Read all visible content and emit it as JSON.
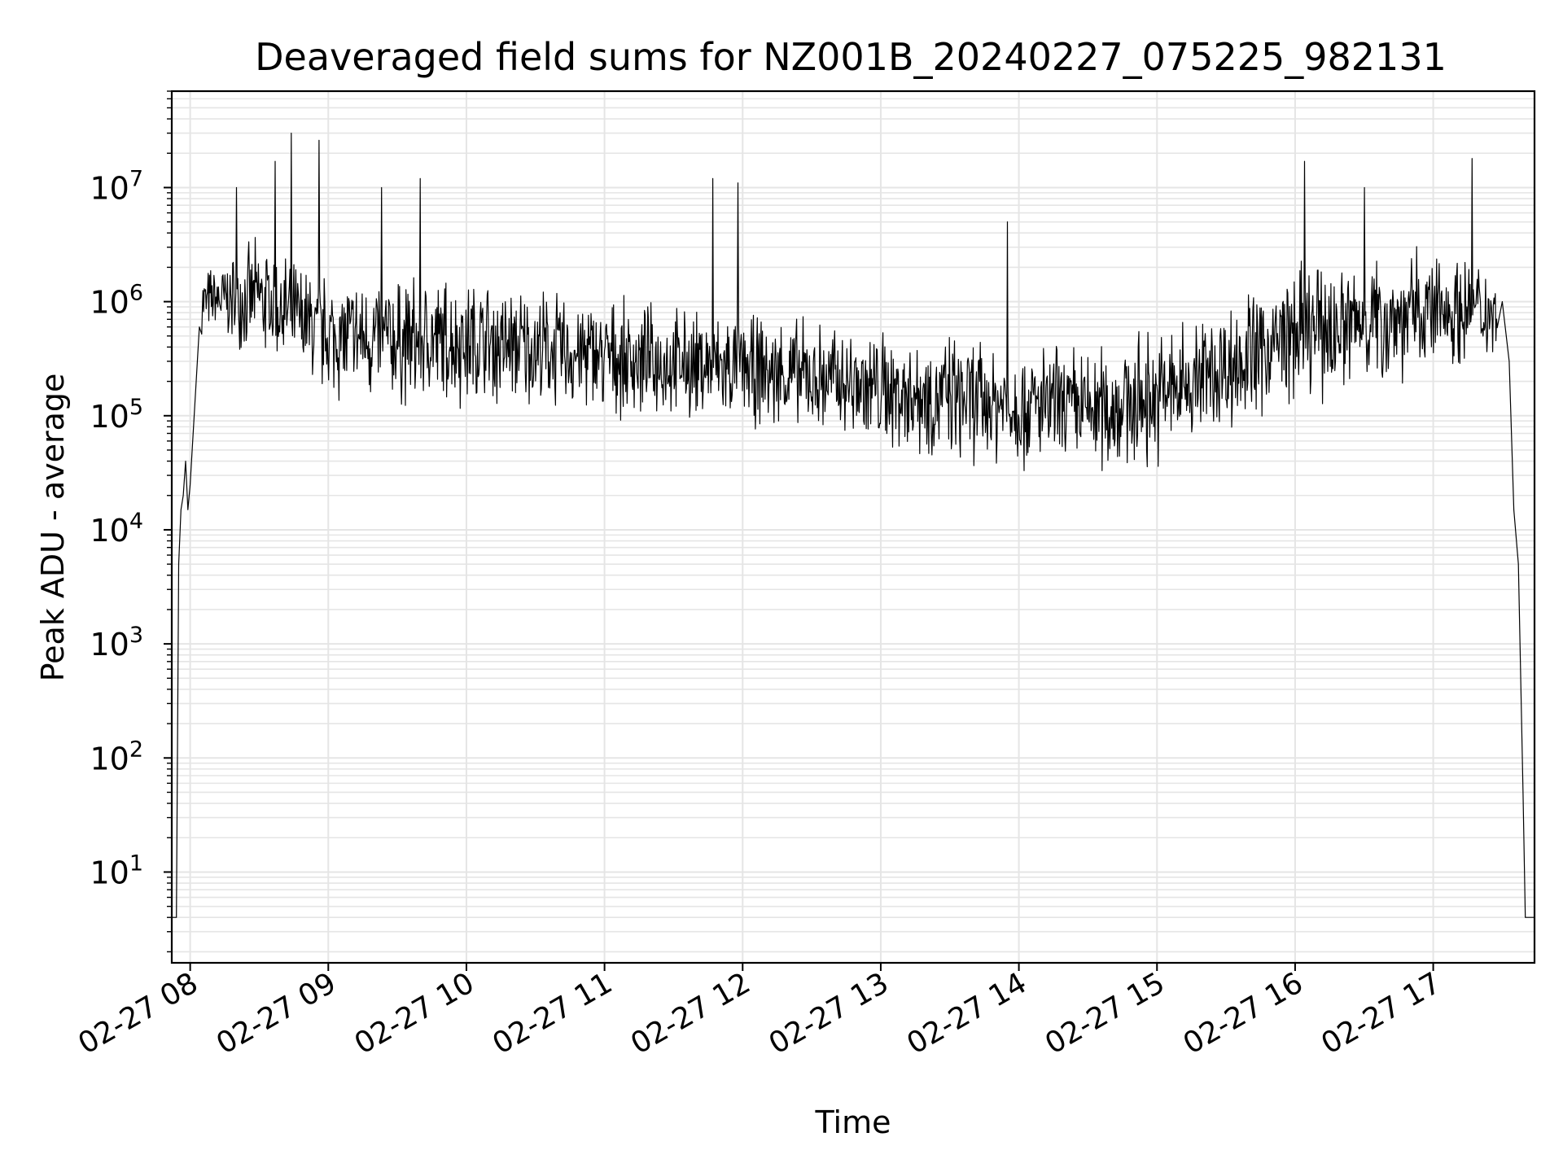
{
  "chart_data": {
    "type": "line",
    "title": "Deaveraged field sums for NZ001B_20240227_075225_982131",
    "xlabel": "Time",
    "ylabel": "Peak ADU - average",
    "yscale": "log",
    "ylim": [
      1.6,
      70000000
    ],
    "xlim": [
      "2024-02-27 07:52",
      "2024-02-27 17:44"
    ],
    "grid": true,
    "series_color": "#000000",
    "grid_color": "#e5e5e5",
    "x_ticks": [
      {
        "value": "2024-02-27 08:00",
        "label": "02-27 08"
      },
      {
        "value": "2024-02-27 09:00",
        "label": "02-27 09"
      },
      {
        "value": "2024-02-27 10:00",
        "label": "02-27 10"
      },
      {
        "value": "2024-02-27 11:00",
        "label": "02-27 11"
      },
      {
        "value": "2024-02-27 12:00",
        "label": "02-27 12"
      },
      {
        "value": "2024-02-27 13:00",
        "label": "02-27 13"
      },
      {
        "value": "2024-02-27 14:00",
        "label": "02-27 14"
      },
      {
        "value": "2024-02-27 15:00",
        "label": "02-27 15"
      },
      {
        "value": "2024-02-27 16:00",
        "label": "02-27 16"
      },
      {
        "value": "2024-02-27 17:00",
        "label": "02-27 17"
      }
    ],
    "y_ticks": [
      {
        "exponent": 1,
        "base": "10",
        "sup": "1"
      },
      {
        "exponent": 2,
        "base": "10",
        "sup": "2"
      },
      {
        "exponent": 3,
        "base": "10",
        "sup": "3"
      },
      {
        "exponent": 4,
        "base": "10",
        "sup": "4"
      },
      {
        "exponent": 5,
        "base": "10",
        "sup": "5"
      },
      {
        "exponent": 6,
        "base": "10",
        "sup": "6"
      },
      {
        "exponent": 7,
        "base": "10",
        "sup": "7"
      }
    ],
    "series": [
      {
        "points": [
          [
            "2024-02-27 07:52",
            4
          ],
          [
            "2024-02-27 07:53",
            4
          ],
          [
            "2024-02-27 07:54",
            4
          ],
          [
            "2024-02-27 07:55",
            5000
          ],
          [
            "2024-02-27 07:56",
            15000
          ],
          [
            "2024-02-27 07:57",
            20000
          ],
          [
            "2024-02-27 07:58",
            40000
          ],
          [
            "2024-02-27 07:59",
            15000
          ],
          [
            "2024-02-27 08:00",
            25000
          ],
          [
            "2024-02-27 08:04",
            600000
          ],
          [
            "2024-02-27 08:08",
            1200000
          ],
          [
            "2024-02-27 08:15",
            1800000
          ],
          [
            "2024-02-27 08:22",
            2500000
          ],
          [
            "2024-02-27 08:30",
            1800000
          ],
          [
            "2024-02-27 08:40",
            2500000
          ],
          [
            "2024-02-27 08:50",
            800000
          ],
          [
            "2024-02-27 09:00",
            1000000
          ],
          [
            "2024-02-27 09:20",
            900000
          ],
          [
            "2024-02-27 09:40",
            800000
          ],
          [
            "2024-02-27 10:00",
            900000
          ],
          [
            "2024-02-27 10:30",
            800000
          ],
          [
            "2024-02-27 11:00",
            700000
          ],
          [
            "2024-02-27 11:30",
            650000
          ],
          [
            "2024-02-27 12:00",
            500000
          ],
          [
            "2024-02-27 12:30",
            400000
          ],
          [
            "2024-02-27 13:00",
            300000
          ],
          [
            "2024-02-27 13:30",
            200000
          ],
          [
            "2024-02-27 14:00",
            150000
          ],
          [
            "2024-02-27 14:30",
            130000
          ],
          [
            "2024-02-27 15:00",
            180000
          ],
          [
            "2024-02-27 15:30",
            300000
          ],
          [
            "2024-02-27 16:00",
            450000
          ],
          [
            "2024-02-27 16:30",
            900000
          ],
          [
            "2024-02-27 17:00",
            1400000
          ],
          [
            "2024-02-27 17:20",
            1500000
          ],
          [
            "2024-02-27 17:30",
            1000000
          ],
          [
            "2024-02-27 17:33",
            300000
          ],
          [
            "2024-02-27 17:35",
            15000
          ],
          [
            "2024-02-27 17:37",
            5000
          ],
          [
            "2024-02-27 17:39",
            50
          ],
          [
            "2024-02-27 17:40",
            4
          ],
          [
            "2024-02-27 17:44",
            4
          ]
        ]
      }
    ],
    "spikes": [
      {
        "x": "2024-02-27 08:20",
        "y": 10000000
      },
      {
        "x": "2024-02-27 08:37",
        "y": 17000000
      },
      {
        "x": "2024-02-27 08:44",
        "y": 30000000
      },
      {
        "x": "2024-02-27 08:56",
        "y": 26000000
      },
      {
        "x": "2024-02-27 09:23",
        "y": 10000000
      },
      {
        "x": "2024-02-27 09:40",
        "y": 12000000
      },
      {
        "x": "2024-02-27 11:47",
        "y": 12000000
      },
      {
        "x": "2024-02-27 11:58",
        "y": 11000000
      },
      {
        "x": "2024-02-27 13:55",
        "y": 5000000
      },
      {
        "x": "2024-02-27 16:04",
        "y": 17000000
      },
      {
        "x": "2024-02-27 16:30",
        "y": 10000000
      },
      {
        "x": "2024-02-27 17:17",
        "y": 18000000
      }
    ],
    "envelope": [
      {
        "x": "2024-02-27 08:05",
        "lo": 500000,
        "hi": 2000000
      },
      {
        "x": "2024-02-27 08:30",
        "lo": 300000,
        "hi": 4000000
      },
      {
        "x": "2024-02-27 09:00",
        "lo": 120000,
        "hi": 2000000
      },
      {
        "x": "2024-02-27 09:30",
        "lo": 100000,
        "hi": 2000000
      },
      {
        "x": "2024-02-27 10:00",
        "lo": 100000,
        "hi": 2000000
      },
      {
        "x": "2024-02-27 10:30",
        "lo": 100000,
        "hi": 1500000
      },
      {
        "x": "2024-02-27 11:00",
        "lo": 90000,
        "hi": 1200000
      },
      {
        "x": "2024-02-27 11:30",
        "lo": 80000,
        "hi": 1000000
      },
      {
        "x": "2024-02-27 12:00",
        "lo": 70000,
        "hi": 900000
      },
      {
        "x": "2024-02-27 12:30",
        "lo": 60000,
        "hi": 800000
      },
      {
        "x": "2024-02-27 13:00",
        "lo": 40000,
        "hi": 700000
      },
      {
        "x": "2024-02-27 13:30",
        "lo": 35000,
        "hi": 600000
      },
      {
        "x": "2024-02-27 14:00",
        "lo": 30000,
        "hi": 500000
      },
      {
        "x": "2024-02-27 14:30",
        "lo": 25000,
        "hi": 500000
      },
      {
        "x": "2024-02-27 15:00",
        "lo": 30000,
        "hi": 700000
      },
      {
        "x": "2024-02-27 15:30",
        "lo": 60000,
        "hi": 1200000
      },
      {
        "x": "2024-02-27 16:00",
        "lo": 100000,
        "hi": 2500000
      },
      {
        "x": "2024-02-27 16:30",
        "lo": 150000,
        "hi": 3000000
      },
      {
        "x": "2024-02-27 17:00",
        "lo": 200000,
        "hi": 3500000
      },
      {
        "x": "2024-02-27 17:28",
        "lo": 300000,
        "hi": 2500000
      }
    ]
  }
}
